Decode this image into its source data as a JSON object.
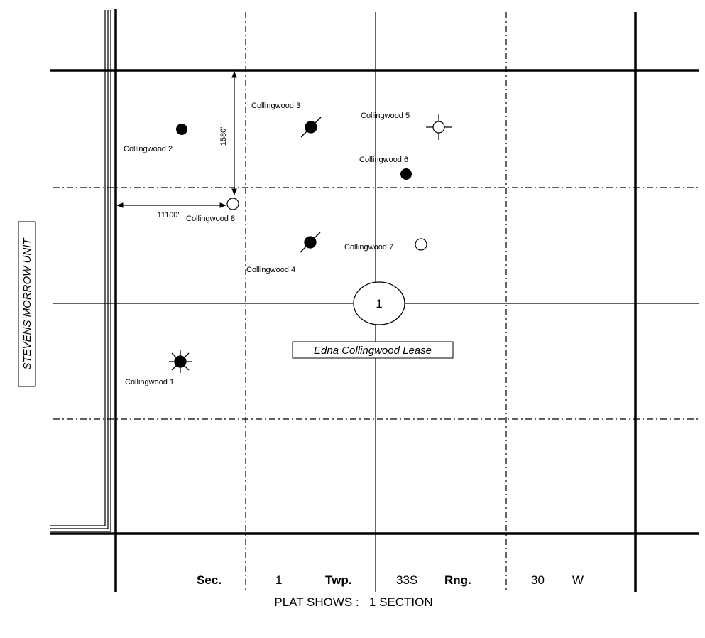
{
  "unit_label": "STEVENS MORROW UNIT",
  "lease_label": "Edna Collingwood Lease",
  "section_number": "1",
  "dimensions": {
    "horizontal": "11100'",
    "vertical": "1580'"
  },
  "wells": [
    {
      "label": "Collingwood 1",
      "symbol": "gas-well"
    },
    {
      "label": "Collingwood 2",
      "symbol": "oil-well"
    },
    {
      "label": "Collingwood 3",
      "symbol": "plugged-oil-well"
    },
    {
      "label": "Collingwood 4",
      "symbol": "plugged-oil-well"
    },
    {
      "label": "Collingwood 5",
      "symbol": "dry-hole"
    },
    {
      "label": "Collingwood 6",
      "symbol": "oil-well"
    },
    {
      "label": "Collingwood 7",
      "symbol": "location"
    },
    {
      "label": "Collingwood 8",
      "symbol": "location"
    }
  ],
  "footer": {
    "sec_label": "Sec.",
    "sec_value": "1",
    "twp_label": "Twp.",
    "twp_value": "33S",
    "rng_label": "Rng.",
    "rng_value": "30",
    "rng_dir": "W",
    "plat_shows": "PLAT SHOWS :   1 SECTION"
  }
}
